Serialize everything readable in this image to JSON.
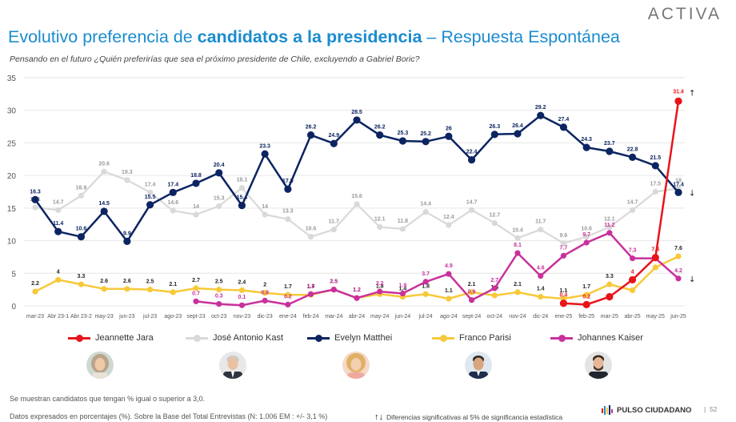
{
  "brand": "ACTIVA",
  "title_part1": "Evolutivo preferencia de ",
  "title_part2": "candidatos a la presidencia",
  "title_part3": " – Respuesta Espontánea",
  "subtitle": "Pensando en el futuro ¿Quién preferirías que sea el próximo presidente de Chile, excluyendo a Gabriel Boric?",
  "footnote_1": "Se muestran candidatos que tengan % igual o superior a 3,0.",
  "footnote_2": "Datos expresados en porcentajes (%). Sobre la Base del Total Entrevistas (N: 1.006  EM : +/- 3,1 %)",
  "footnote_3": "Diferencias significativas al 5% de significancia estadística",
  "pulso_label": "PULSO CIUDADANO",
  "page_number": "52",
  "colors": {
    "title": "#1b8ccf",
    "jara": "#e8141b",
    "kast": "#d9d9d9",
    "matthei": "#0c2461",
    "parisi": "#f7c93a",
    "kaiser": "#c8319b"
  },
  "chart_data": {
    "type": "line",
    "ylim": [
      0,
      35
    ],
    "yticks": [
      0,
      5,
      10,
      15,
      20,
      25,
      30,
      35
    ],
    "grid": true,
    "legend_position": "bottom",
    "categories": [
      "mar-23",
      "Abr 23-1",
      "Abr 23-2",
      "may-23",
      "jun-23",
      "jul-23",
      "ago-23",
      "sept-23",
      "oct-23",
      "nov-23",
      "dic-23",
      "ene-24",
      "feb-24",
      "mar-24",
      "abr-24",
      "may-24",
      "jun-24",
      "jul-24",
      "ago-24",
      "sept-24",
      "oct-24",
      "nov-24",
      "dic-24",
      "ene-25",
      "feb-25",
      "mar-25",
      "abr-25",
      "may-25",
      "jun-25"
    ],
    "series": [
      {
        "name": "Jeannette Jara",
        "color": "#e8141b",
        "values": [
          null,
          null,
          null,
          null,
          null,
          null,
          null,
          null,
          null,
          null,
          null,
          null,
          null,
          null,
          null,
          null,
          null,
          null,
          null,
          null,
          null,
          null,
          null,
          0.4,
          0.2,
          1.4,
          4,
          7.4,
          31.4
        ],
        "labels": [
          null,
          null,
          null,
          null,
          null,
          null,
          null,
          null,
          null,
          null,
          null,
          null,
          null,
          null,
          null,
          null,
          null,
          null,
          null,
          null,
          null,
          null,
          null,
          "0.4",
          "0.2",
          null,
          "4",
          "7.4",
          "31.4"
        ]
      },
      {
        "name": "José Antonio Kast",
        "color": "#d9d9d9",
        "values": [
          15.1,
          14.7,
          16.9,
          20.6,
          19.3,
          17.4,
          14.6,
          14,
          15.3,
          18.1,
          14,
          13.3,
          10.6,
          11.7,
          15.6,
          12.1,
          11.8,
          14.4,
          12.4,
          14.7,
          12.7,
          10.4,
          11.7,
          9.6,
          10.6,
          12.1,
          14.7,
          17.5,
          18
        ],
        "labels": [
          "15.1",
          "14.7",
          "16.9",
          "20.6",
          "19.3",
          "17.4",
          "14.6",
          "14",
          "15.3",
          "18.1",
          "14",
          "13.3",
          "10.6",
          "11.7",
          "15.6",
          "12.1",
          "11.8",
          "14.4",
          "12.4",
          "14.7",
          "12.7",
          "10.4",
          "11.7",
          "9.6",
          "10.6",
          "12.1",
          "14.7",
          "17.5",
          "18"
        ]
      },
      {
        "name": "Evelyn Matthei",
        "color": "#0c2461",
        "values": [
          16.3,
          11.4,
          10.6,
          14.5,
          9.9,
          15.5,
          17.4,
          18.8,
          20.4,
          15.4,
          23.3,
          17.9,
          26.2,
          24.9,
          28.5,
          26.2,
          25.3,
          25.2,
          26,
          22.4,
          26.3,
          26.4,
          29.2,
          27.4,
          24.3,
          23.7,
          22.8,
          21.5,
          17.4
        ],
        "labels": [
          "16.3",
          "11.4",
          "10.6",
          "14.5",
          "9.9",
          "15.5",
          "17.4",
          "18.8",
          "20.4",
          "15.4",
          "23.3",
          "17.9",
          "26.2",
          "24.9",
          "28.5",
          "26.2",
          "25.3",
          "25.2",
          "26",
          "22.4",
          "26.3",
          "26.4",
          "29.2",
          "27.4",
          "24.3",
          "23.7",
          "22.8",
          "21.5",
          "17.4"
        ]
      },
      {
        "name": "Franco Parisi",
        "color": "#f7c93a",
        "values": [
          2.2,
          4,
          3.3,
          2.6,
          2.6,
          2.5,
          2.1,
          2.7,
          2.5,
          2.4,
          2,
          1.7,
          1.7,
          2.5,
          1.2,
          1.8,
          1.4,
          1.8,
          1.1,
          2.1,
          1.6,
          2.1,
          1.4,
          1.1,
          1.7,
          3.3,
          2.4,
          5.9,
          7.6
        ],
        "labels": [
          "2.2",
          "4",
          "3.3",
          "2.6",
          "2.6",
          "2.5",
          "2.1",
          "2.7",
          "2.5",
          "2.4",
          "2",
          "1.7",
          "1.7",
          "2.5",
          "1.2",
          "1.8",
          "1.4",
          "1.8",
          "1.1",
          "2.1",
          "1.6",
          "2.1",
          "1.4",
          "1.1",
          "1.7",
          "3.3",
          null,
          null,
          "7.6"
        ]
      },
      {
        "name": "Johannes Kaiser",
        "color": "#c8319b",
        "values": [
          null,
          null,
          null,
          null,
          null,
          null,
          null,
          0.7,
          0.3,
          0.1,
          0.8,
          0.2,
          1.8,
          2.5,
          1.2,
          2.2,
          1.9,
          3.7,
          4.9,
          0.9,
          2.7,
          8.1,
          4.6,
          7.7,
          9.7,
          11.2,
          7.3,
          7.3,
          4.2
        ],
        "labels": [
          null,
          null,
          null,
          null,
          null,
          null,
          null,
          "0.7",
          "0.3",
          "0.1",
          "0.8",
          "0.2",
          "1.8",
          "2.5",
          "1.2",
          "2.2",
          "1.9",
          "3.7",
          "4.9",
          "0.9",
          "2.7",
          "8.1",
          "4.6",
          "7.7",
          "9.7",
          "11.2",
          "7.3",
          null,
          "4.2"
        ]
      }
    ],
    "significance_marks": [
      {
        "series": "Jeannette Jara",
        "index": 28,
        "direction": "up"
      },
      {
        "series": "Evelyn Matthei",
        "index": 28,
        "direction": "down"
      },
      {
        "series": "Johannes Kaiser",
        "index": 28,
        "direction": "down"
      }
    ]
  }
}
